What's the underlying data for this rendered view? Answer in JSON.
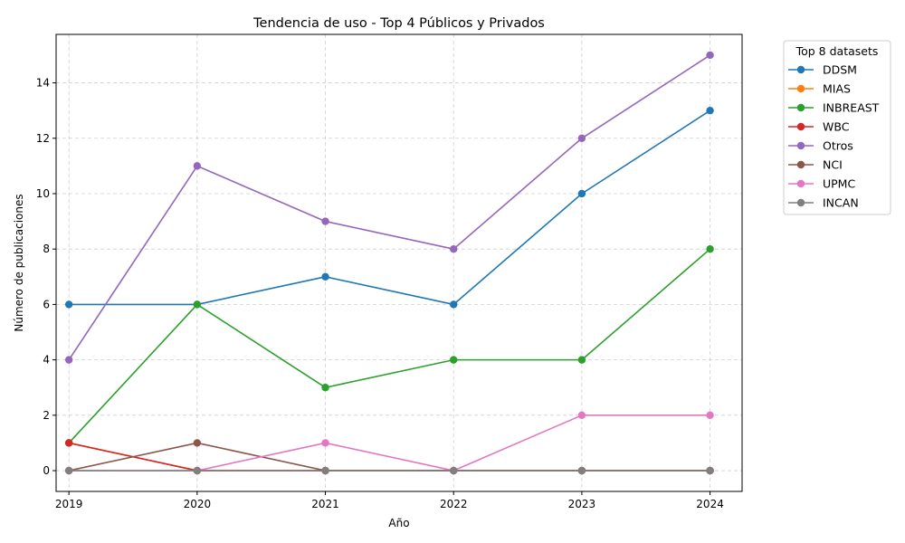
{
  "chart_data": {
    "type": "line",
    "title": "Tendencia de uso - Top 4 Públicos y Privados",
    "xlabel": "Año",
    "ylabel": "Número de publicaciones",
    "x": [
      2019,
      2020,
      2021,
      2022,
      2023,
      2024
    ],
    "xticks": [
      "2019",
      "2020",
      "2021",
      "2022",
      "2023",
      "2024"
    ],
    "yticks": [
      "0",
      "2",
      "4",
      "6",
      "8",
      "10",
      "12",
      "14"
    ],
    "ylim": [
      -0.75,
      15.75
    ],
    "grid": true,
    "legend": {
      "title": "Top 8 datasets",
      "placement": "outside-top-right"
    },
    "series": [
      {
        "name": "DDSM",
        "color": "#1f77b4",
        "values": [
          6,
          6,
          7,
          6,
          10,
          13
        ]
      },
      {
        "name": "MIAS",
        "color": "#ff7f0e",
        "values": [
          1,
          0,
          0,
          0,
          0,
          0
        ]
      },
      {
        "name": "INBREAST",
        "color": "#2ca02c",
        "values": [
          1,
          6,
          3,
          4,
          4,
          8
        ]
      },
      {
        "name": "WBC",
        "color": "#d62728",
        "values": [
          1,
          0,
          0,
          0,
          0,
          0
        ]
      },
      {
        "name": "Otros",
        "color": "#9467bd",
        "values": [
          4,
          11,
          9,
          8,
          12,
          15
        ]
      },
      {
        "name": "NCI",
        "color": "#8c564b",
        "values": [
          0,
          1,
          0,
          0,
          0,
          0
        ]
      },
      {
        "name": "UPMC",
        "color": "#e377c2",
        "values": [
          0,
          0,
          1,
          0,
          2,
          2
        ]
      },
      {
        "name": "INCAN",
        "color": "#7f7f7f",
        "values": [
          0,
          0,
          0,
          0,
          0,
          0
        ]
      }
    ]
  }
}
